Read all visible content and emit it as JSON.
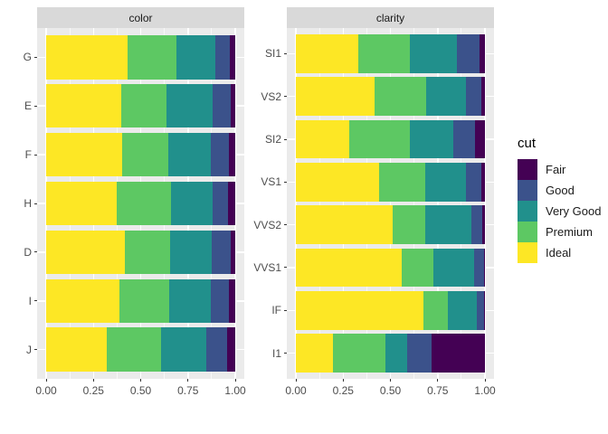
{
  "chart_data": {
    "type": "bar",
    "orientation": "horizontal",
    "stacked": true,
    "normalized": true,
    "grid": true,
    "x_range": [
      0,
      1
    ],
    "x_ticks": [
      "0.00",
      "0.25",
      "0.50",
      "0.75",
      "1.00"
    ],
    "x_minor_ticks": [
      0.125,
      0.375,
      0.625,
      0.875
    ],
    "panel_background": "#EBEBEB",
    "strip_background": "#D9D9D9",
    "legend": {
      "title": "cut",
      "position": "right",
      "entries": [
        {
          "label": "Fair",
          "color": "#440154"
        },
        {
          "label": "Good",
          "color": "#3B528B"
        },
        {
          "label": "Very Good",
          "color": "#21908C"
        },
        {
          "label": "Premium",
          "color": "#5DC863"
        },
        {
          "label": "Ideal",
          "color": "#FDE725"
        }
      ]
    },
    "stacking_order_left_to_right": [
      "Ideal",
      "Premium",
      "Very Good",
      "Good",
      "Fair"
    ],
    "facets": [
      {
        "title": "color",
        "categories": [
          "G",
          "E",
          "F",
          "H",
          "D",
          "I",
          "J"
        ],
        "series": [
          {
            "name": "Ideal",
            "values": [
              0.433,
              0.398,
              0.401,
              0.375,
              0.418,
              0.386,
              0.319
            ]
          },
          {
            "name": "Premium",
            "values": [
              0.259,
              0.239,
              0.244,
              0.284,
              0.237,
              0.263,
              0.288
            ]
          },
          {
            "name": "Very Good",
            "values": [
              0.204,
              0.245,
              0.227,
              0.22,
              0.223,
              0.222,
              0.241
            ]
          },
          {
            "name": "Good",
            "values": [
              0.077,
              0.095,
              0.095,
              0.085,
              0.098,
              0.096,
              0.109
            ]
          },
          {
            "name": "Fair",
            "values": [
              0.028,
              0.023,
              0.033,
              0.036,
              0.024,
              0.032,
              0.042
            ]
          }
        ]
      },
      {
        "title": "clarity",
        "categories": [
          "SI1",
          "VS2",
          "SI2",
          "VS1",
          "VVS2",
          "VVS1",
          "IF",
          "I1"
        ],
        "series": [
          {
            "name": "Ideal",
            "values": [
              0.328,
              0.414,
              0.283,
              0.439,
              0.514,
              0.56,
              0.677,
              0.197
            ]
          },
          {
            "name": "Premium",
            "values": [
              0.274,
              0.274,
              0.321,
              0.243,
              0.172,
              0.169,
              0.128,
              0.277
            ]
          },
          {
            "name": "Very Good",
            "values": [
              0.248,
              0.211,
              0.228,
              0.217,
              0.244,
              0.216,
              0.15,
              0.113
            ]
          },
          {
            "name": "Good",
            "values": [
              0.119,
              0.08,
              0.118,
              0.079,
              0.056,
              0.051,
              0.04,
              0.13
            ]
          },
          {
            "name": "Fair",
            "values": [
              0.031,
              0.021,
              0.051,
              0.021,
              0.014,
              0.005,
              0.005,
              0.283
            ]
          }
        ]
      }
    ]
  }
}
